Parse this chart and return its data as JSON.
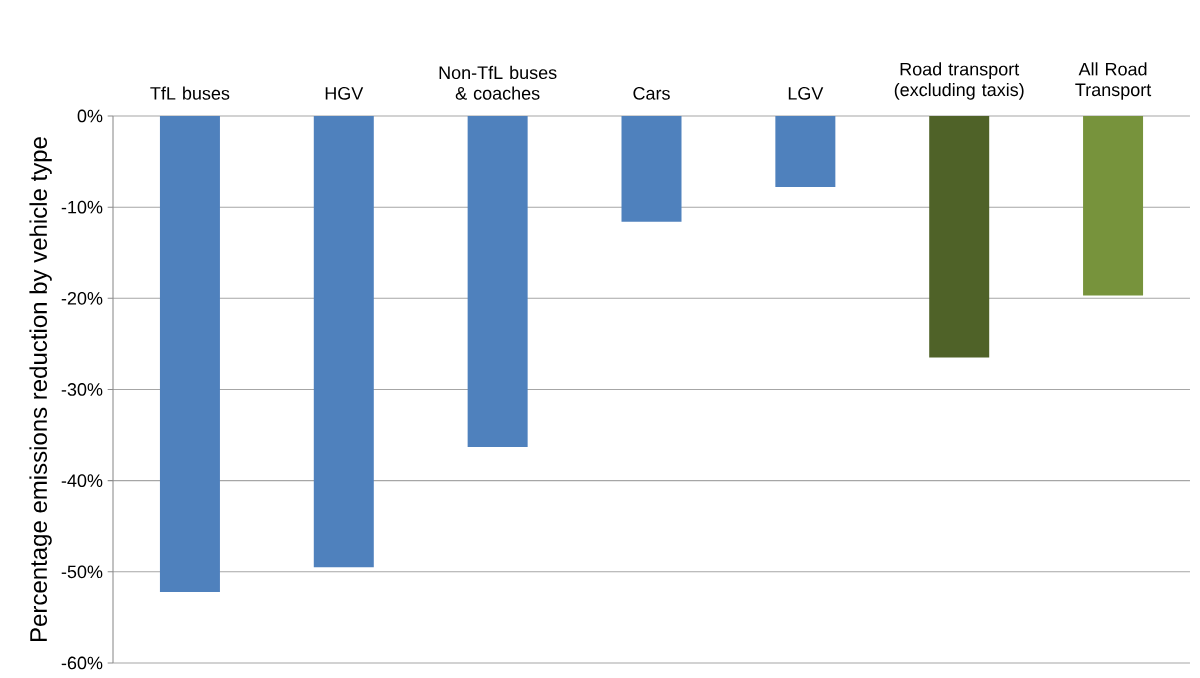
{
  "chart_data": {
    "type": "bar",
    "ylabel": "Percentage emissions reduction by vehicle type",
    "categories": [
      "TfL buses",
      "HGV",
      "Non-TfL buses & coaches",
      "Cars",
      "LGV",
      "Road transport (excluding taxis)",
      "All Road Transport"
    ],
    "values": [
      -52.2,
      -49.5,
      -36.3,
      -11.6,
      -7.8,
      -26.5,
      -19.7
    ],
    "colors": [
      "#4f81bd",
      "#4f81bd",
      "#4f81bd",
      "#4f81bd",
      "#4f81bd",
      "#4f6228",
      "#77933c"
    ],
    "ylim": [
      -60,
      0
    ],
    "yticks": [
      {
        "value": 0,
        "label": "0%"
      },
      {
        "value": -10,
        "label": "-10%"
      },
      {
        "value": -20,
        "label": "-20%"
      },
      {
        "value": -30,
        "label": "-30%"
      },
      {
        "value": -40,
        "label": "-40%"
      },
      {
        "value": -50,
        "label": "-50%"
      },
      {
        "value": -60,
        "label": "-60%"
      }
    ],
    "grid": "y"
  }
}
